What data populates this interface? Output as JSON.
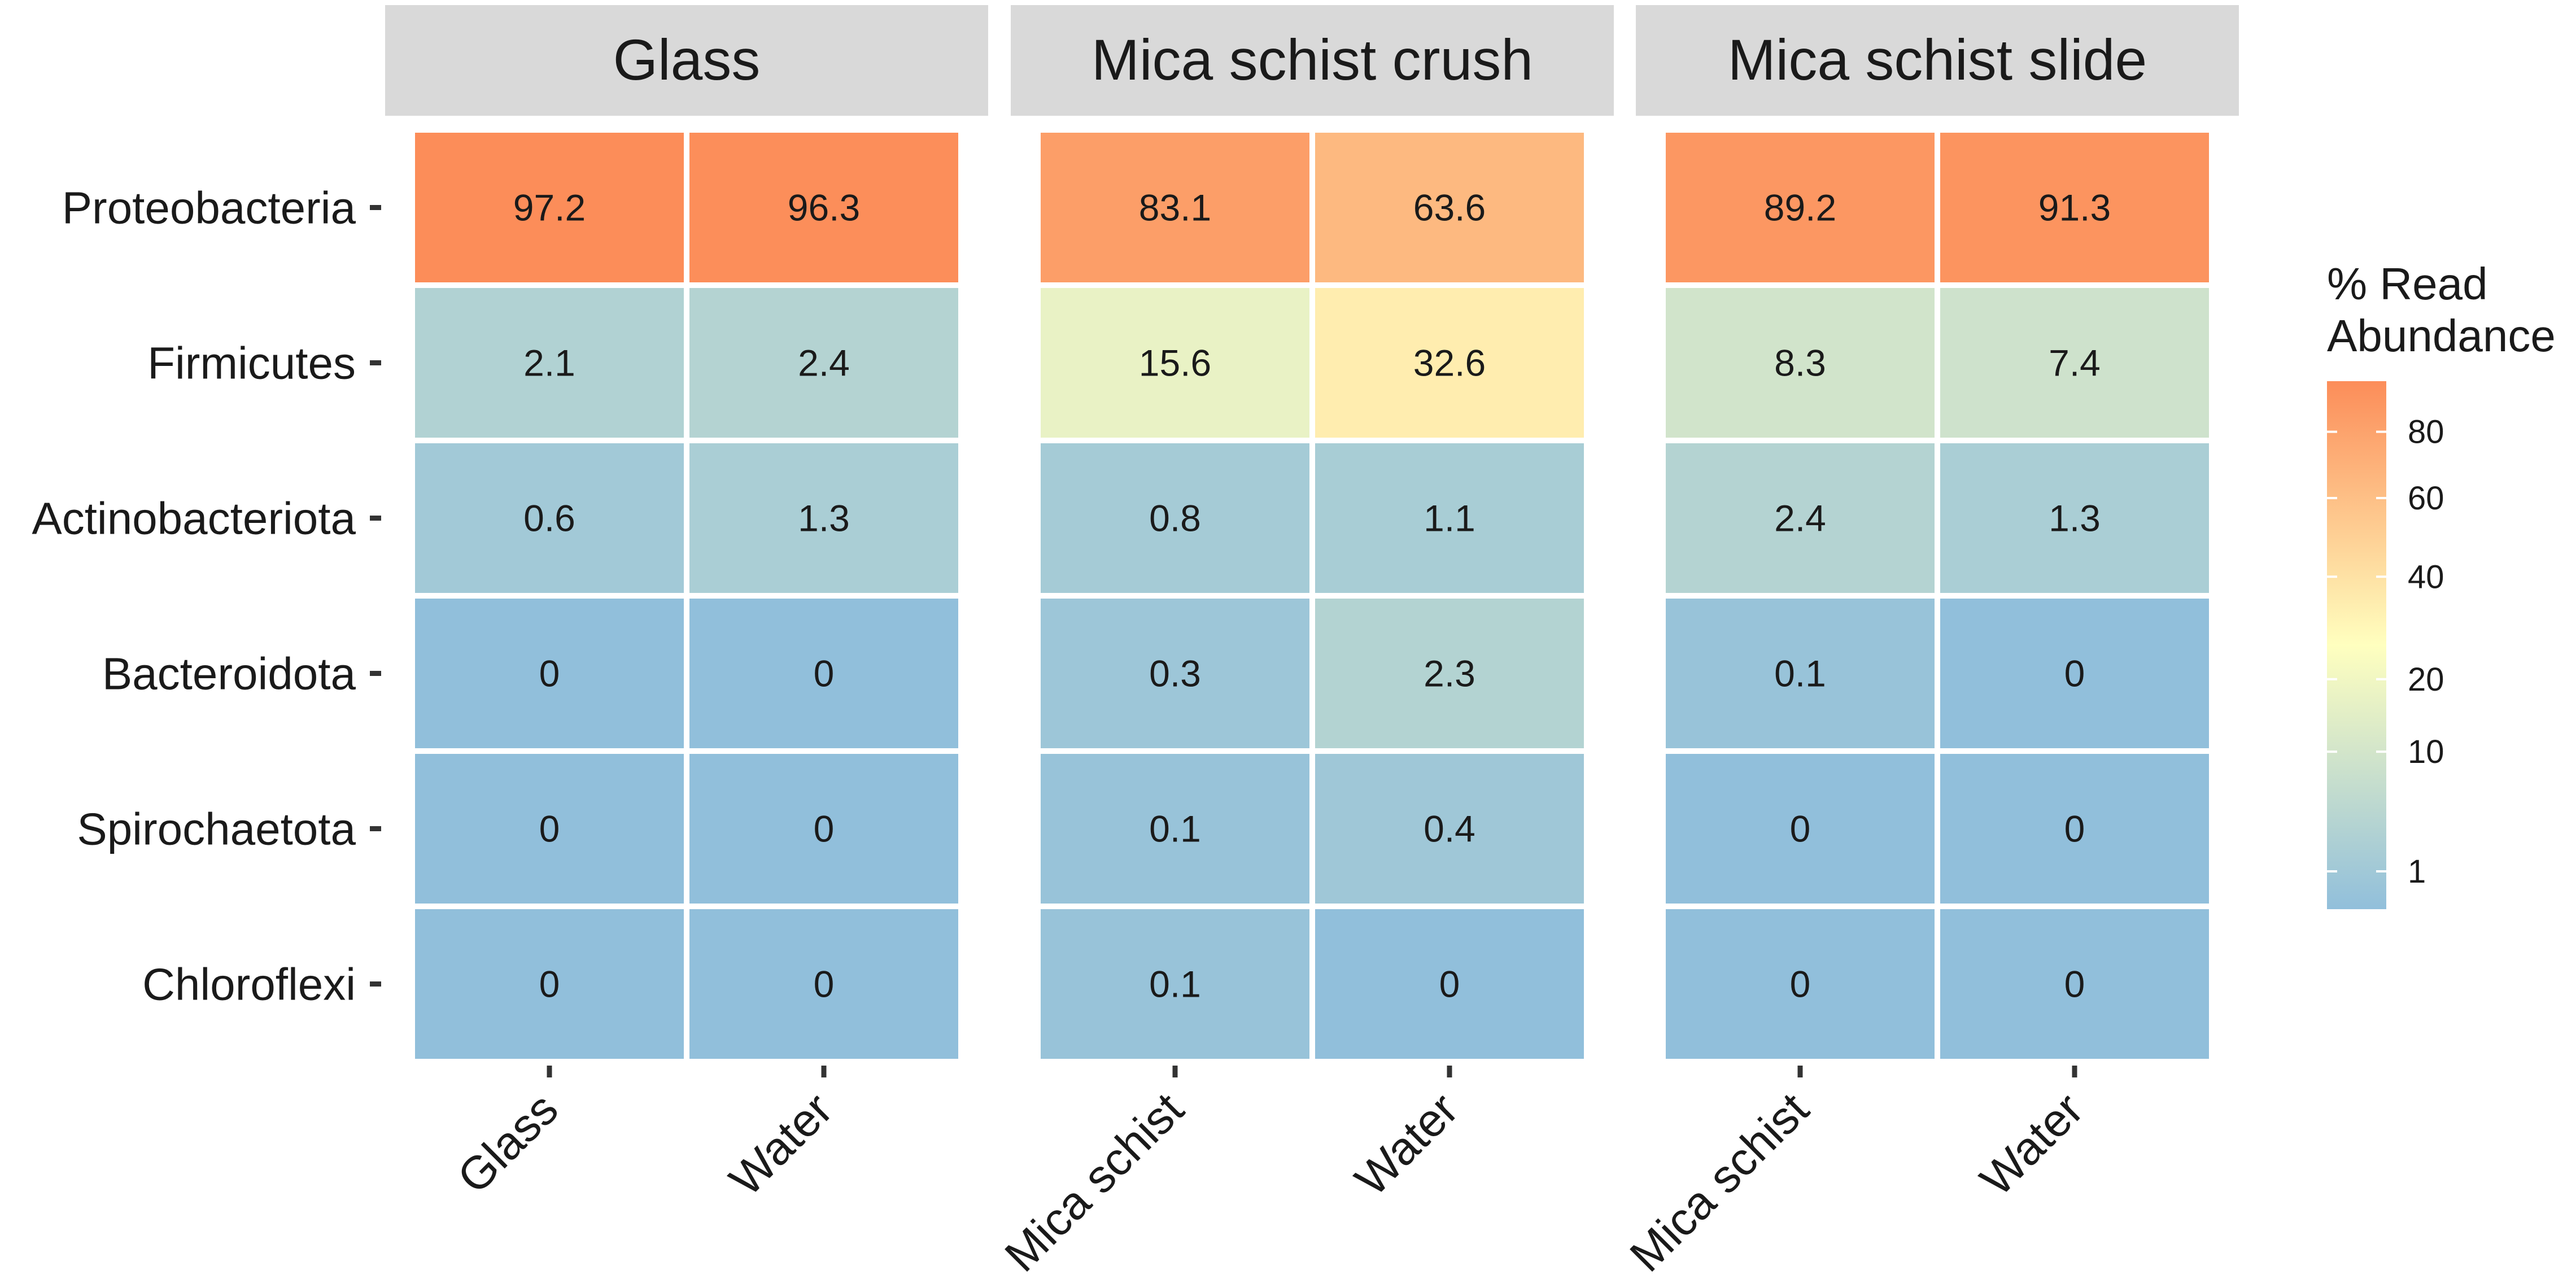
{
  "chart_data": {
    "type": "heatmap",
    "value_label": "% Read Abundance",
    "legend": {
      "title_lines": [
        "% Read",
        "Abundance"
      ],
      "ticks": [
        80,
        60,
        40,
        20,
        10,
        1
      ],
      "placement": "right",
      "colors": {
        "low": "#91bfdb",
        "mid": "#ffffbf",
        "high": "#fc8d59"
      }
    },
    "rows": [
      "Proteobacteria",
      "Firmicutes",
      "Actinobacteriota",
      "Bacteroidota",
      "Spirochaetota",
      "Chloroflexi"
    ],
    "panels": [
      {
        "title": "Glass",
        "columns": [
          "Glass",
          "Water"
        ],
        "values": [
          [
            97.2,
            96.3
          ],
          [
            2.1,
            2.4
          ],
          [
            0.6,
            1.3
          ],
          [
            0,
            0
          ],
          [
            0,
            0
          ],
          [
            0,
            0
          ]
        ]
      },
      {
        "title": "Mica schist crush",
        "columns": [
          "Mica schist",
          "Water"
        ],
        "values": [
          [
            83.1,
            63.6
          ],
          [
            15.6,
            32.6
          ],
          [
            0.8,
            1.1
          ],
          [
            0.3,
            2.3
          ],
          [
            0.1,
            0.4
          ],
          [
            0.1,
            0
          ]
        ]
      },
      {
        "title": "Mica schist slide",
        "columns": [
          "Mica schist",
          "Water"
        ],
        "values": [
          [
            89.2,
            91.3
          ],
          [
            8.3,
            7.4
          ],
          [
            2.4,
            1.3
          ],
          [
            0.1,
            0
          ],
          [
            0,
            0
          ],
          [
            0,
            0
          ]
        ]
      }
    ]
  }
}
